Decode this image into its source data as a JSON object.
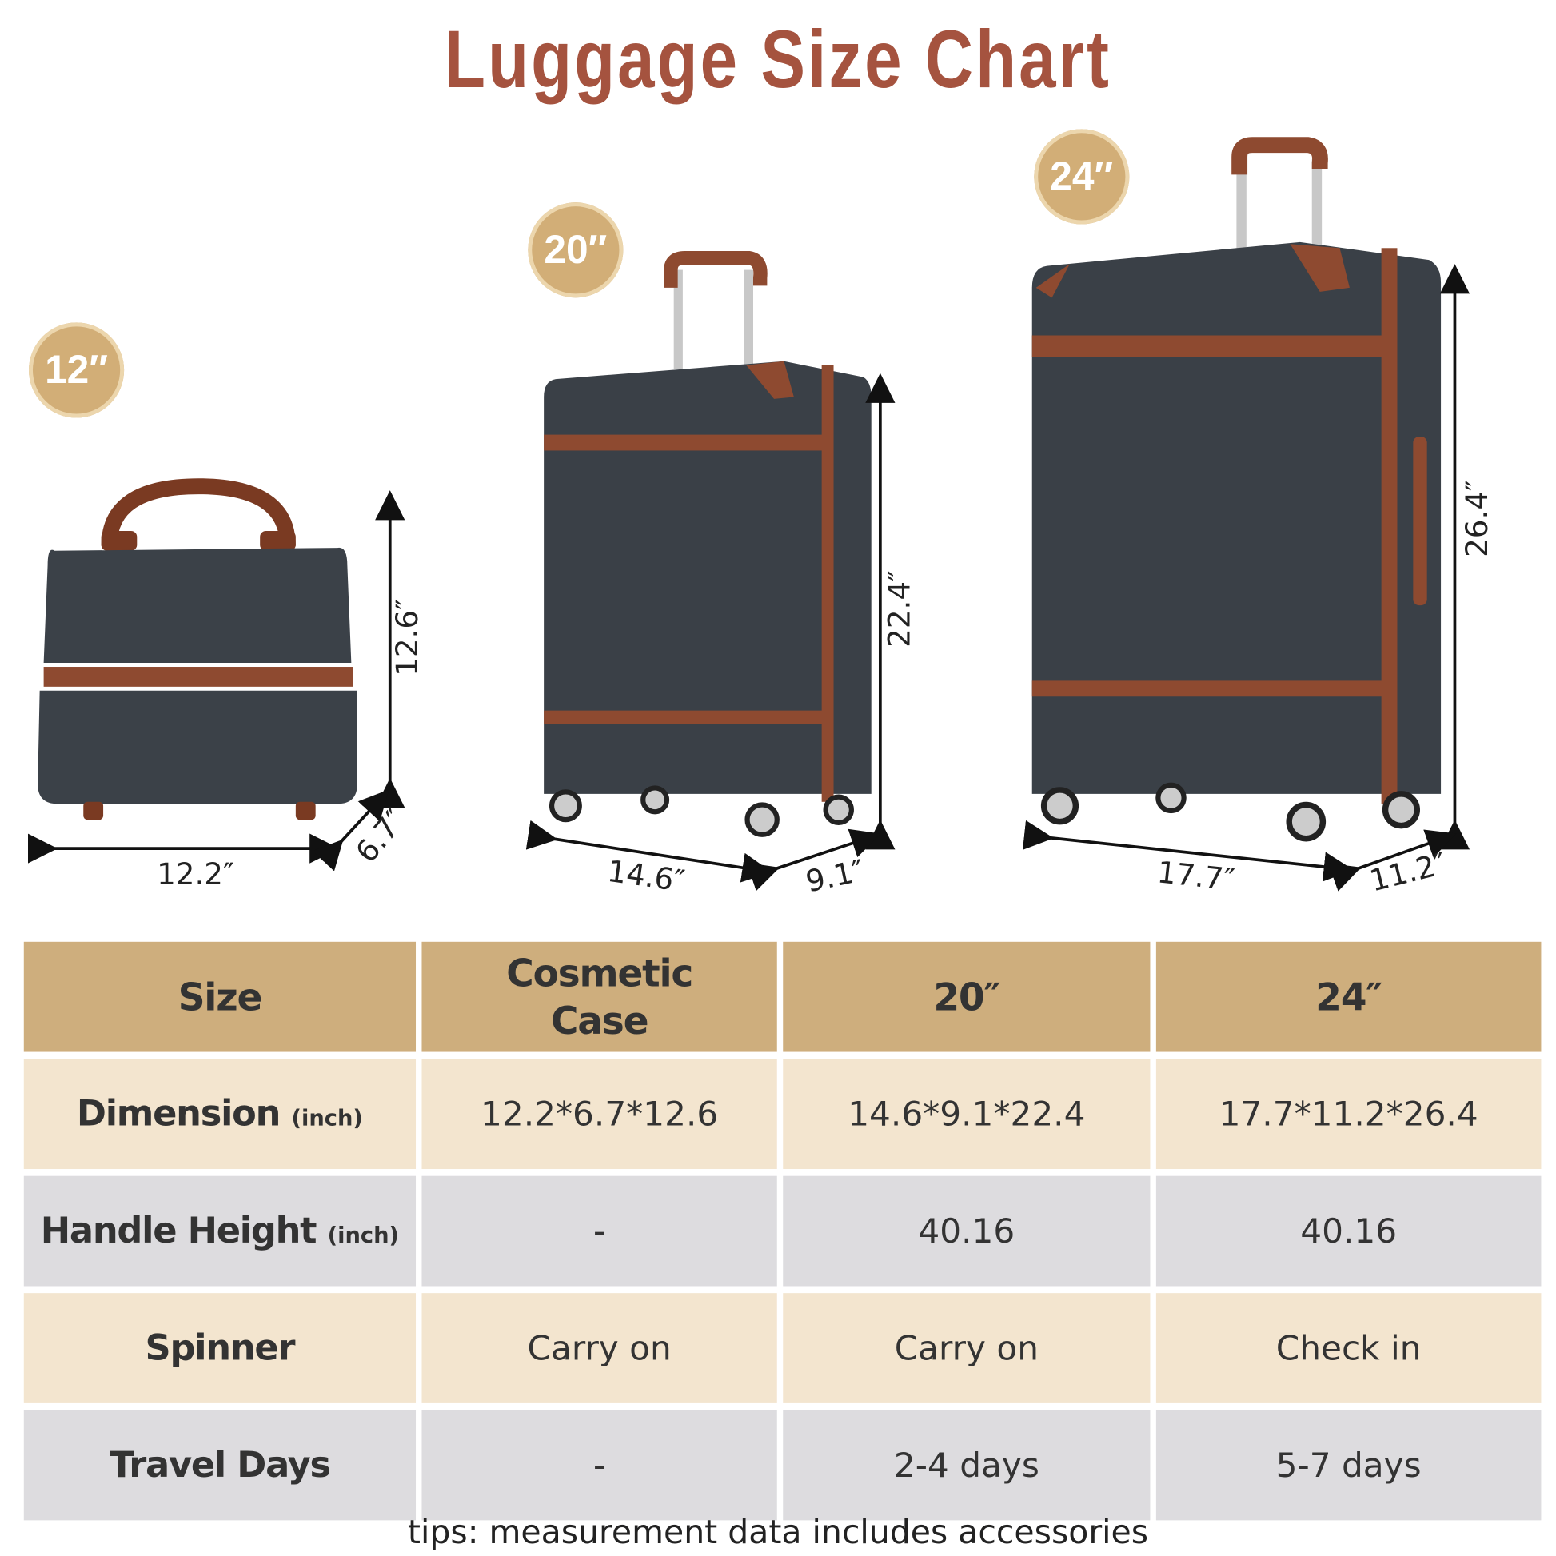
{
  "title": "Luggage Size Chart",
  "badges": [
    "12″",
    "20″",
    "24″"
  ],
  "dimensions": {
    "cosmetic": {
      "width": "12.2″",
      "depth": "6.7″",
      "height": "12.6″"
    },
    "s20": {
      "width": "14.6″",
      "depth": "9.1″",
      "height": "22.4″"
    },
    "s24": {
      "width": "17.7″",
      "depth": "11.2″",
      "height": "26.4″"
    }
  },
  "colors": {
    "title": "#a5533f",
    "badge": "#d2ae77",
    "header": "#ceae7d",
    "cream_row": "#f3e5cf",
    "gray_row": "#dddcdf",
    "shell": "#3a4047",
    "trim": "#8e4a30"
  },
  "table": {
    "headers": [
      "Size",
      "Cosmetic Case",
      "20″",
      "24″"
    ],
    "rows": [
      {
        "label": "Dimension",
        "unit": "(inch)",
        "values": [
          "12.2*6.7*12.6",
          "14.6*9.1*22.4",
          "17.7*11.2*26.4"
        ]
      },
      {
        "label": "Handle Height",
        "unit": "(inch)",
        "values": [
          "-",
          "40.16",
          "40.16"
        ]
      },
      {
        "label": "Spinner",
        "unit": "",
        "values": [
          "Carry on",
          "Carry on",
          "Check in"
        ]
      },
      {
        "label": "Travel Days",
        "unit": "",
        "values": [
          "-",
          "2-4 days",
          "5-7 days"
        ]
      }
    ]
  },
  "tip": "tips: measurement data includes accessories"
}
